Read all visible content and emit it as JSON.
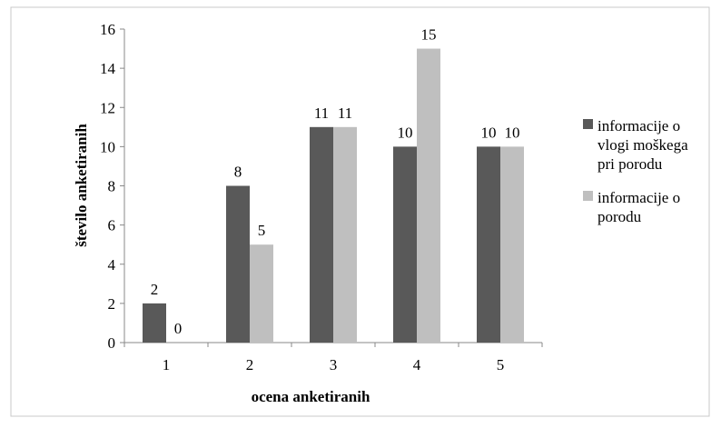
{
  "chart_data": {
    "type": "bar",
    "categories": [
      "1",
      "2",
      "3",
      "4",
      "5"
    ],
    "series": [
      {
        "name": "informacije o vlogi moškega pri porodu",
        "values": [
          2,
          8,
          11,
          10,
          10
        ],
        "color": "#595959"
      },
      {
        "name": "informacije o porodu",
        "values": [
          0,
          5,
          11,
          15,
          10
        ],
        "color": "#bfbfbf"
      }
    ],
    "xlabel": "ocena anketiranih",
    "ylabel": "število anketiranih",
    "ylim": [
      0,
      16
    ],
    "yticks": [
      0,
      2,
      4,
      6,
      8,
      10,
      12,
      14,
      16
    ],
    "grid": false,
    "legend_position": "right",
    "legend_lines": [
      [
        "informacije o",
        "vlogi moškega",
        "pri porodu"
      ],
      [
        "informacije o",
        "porodu"
      ]
    ]
  }
}
